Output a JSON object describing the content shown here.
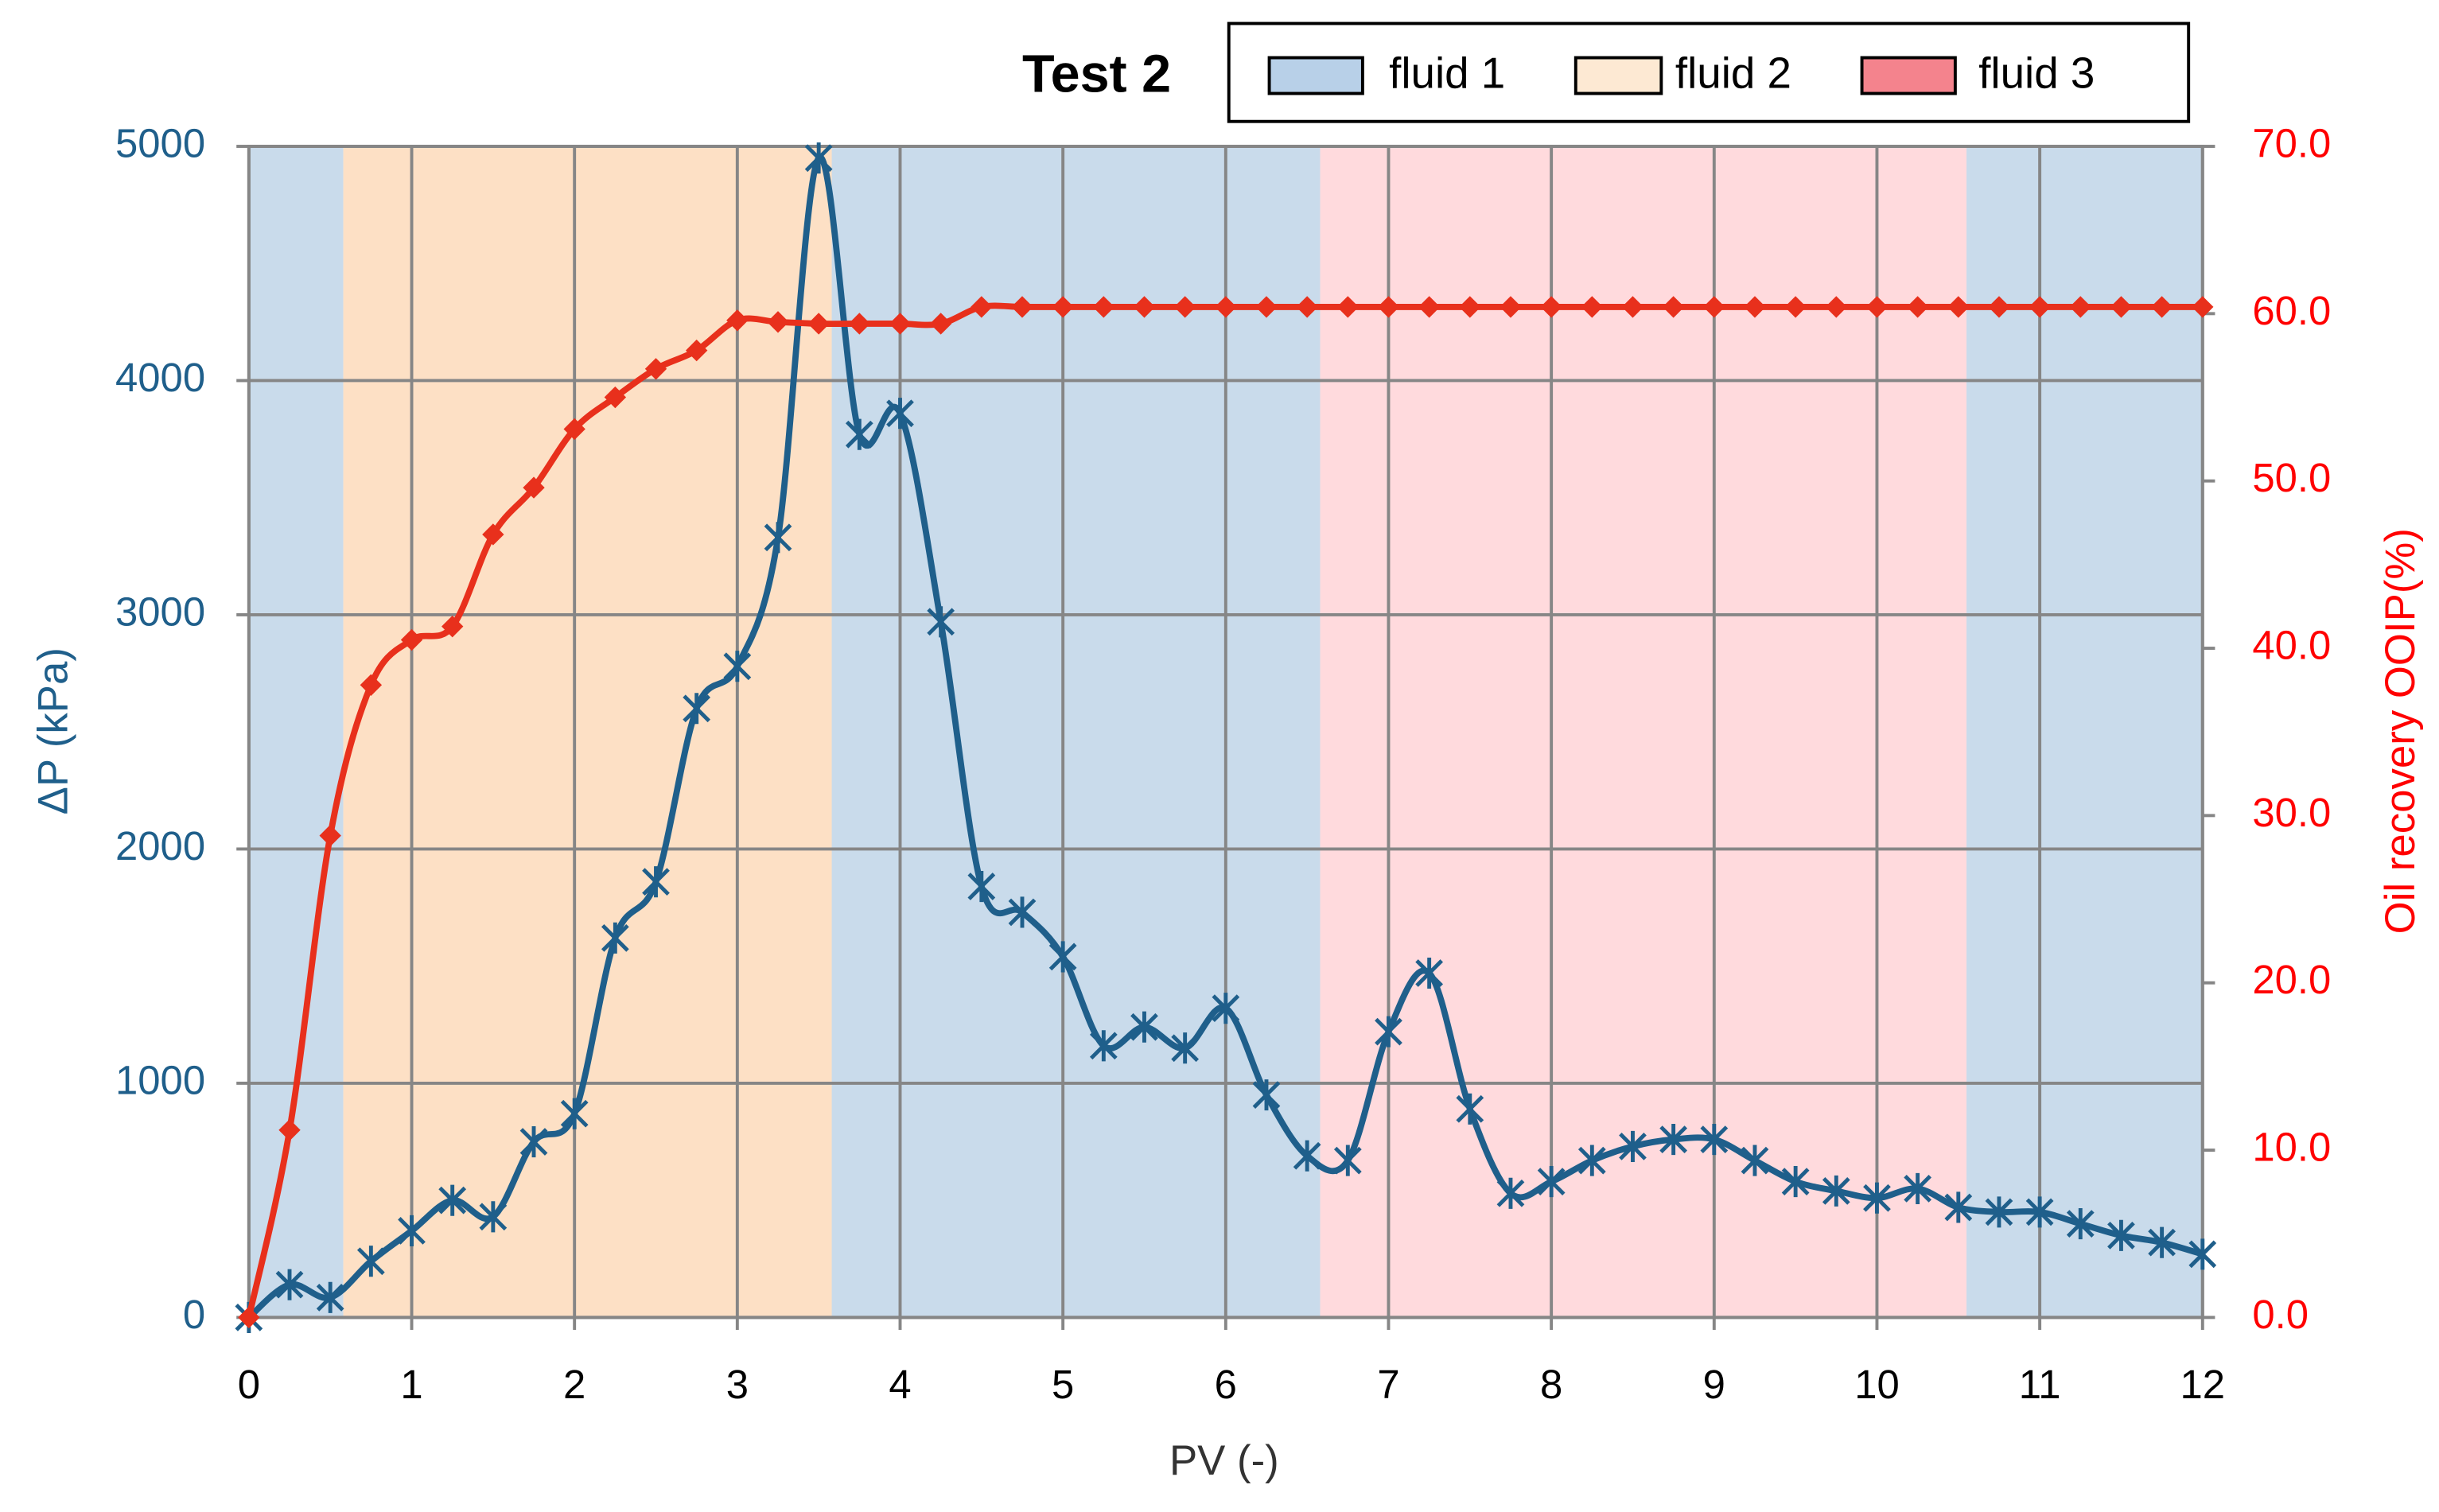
{
  "chart_data": {
    "type": "line",
    "title": "Test 2",
    "x_label": "PV (-)",
    "y_label": "ΔP (kPa)",
    "y2_label": "Oil recovery OOIP(%)",
    "x": [
      0,
      0.25,
      0.5,
      0.75,
      1,
      1.25,
      1.5,
      1.75,
      2,
      2.25,
      2.5,
      2.75,
      3,
      3.25,
      3.5,
      3.75,
      4,
      4.25,
      4.5,
      4.75,
      5,
      5.25,
      5.5,
      5.75,
      6,
      6.25,
      6.5,
      6.75,
      7,
      7.25,
      7.5,
      7.75,
      8,
      8.25,
      8.5,
      8.75,
      9,
      9.25,
      9.5,
      9.75,
      10,
      10.25,
      10.5,
      10.75,
      11,
      11.25,
      11.5,
      11.75,
      12
    ],
    "series": [
      {
        "color": "#1f5f8b",
        "marker": "star",
        "values": [
          0,
          140,
          85,
          240,
          370,
          500,
          430,
          750,
          870,
          1620,
          1860,
          2600,
          2780,
          3330,
          4950,
          3770,
          3860,
          2970,
          1840,
          1730,
          1540,
          1160,
          1240,
          1150,
          1320,
          950,
          690,
          670,
          1220,
          1470,
          890,
          530,
          580,
          670,
          730,
          760,
          760,
          670,
          580,
          540,
          510,
          550,
          470,
          450,
          450,
          400,
          350,
          320,
          270
        ]
      },
      {
        "color": "#e8301c",
        "marker": "diamond",
        "axis": "y2",
        "values": [
          0,
          11.2,
          28.8,
          37.8,
          40.5,
          41.3,
          46.8,
          49.6,
          53.1,
          55,
          56.7,
          57.8,
          59.6,
          59.5,
          59.4,
          59.4,
          59.4,
          59.4,
          60.4,
          60.4,
          60.4,
          60.4,
          60.4,
          60.4,
          60.4,
          60.4,
          60.4,
          60.4,
          60.4,
          60.4,
          60.4,
          60.4,
          60.4,
          60.4,
          60.4,
          60.4,
          60.4,
          60.4,
          60.4,
          60.4,
          60.4,
          60.4,
          60.4,
          60.4,
          60.4,
          60.4,
          60.4,
          60.4,
          60.4
        ]
      }
    ],
    "bands": [
      {
        "name": "fluid 1",
        "color": "#c9dbeb",
        "legend_color": "#b8d0e8",
        "spans": [
          [
            0,
            0.58
          ],
          [
            3.58,
            6.58
          ],
          [
            10.55,
            12
          ]
        ]
      },
      {
        "name": "fluid 2",
        "color": "#fde0c5",
        "legend_color": "#fde9d3",
        "spans": [
          [
            0.58,
            3.58
          ]
        ]
      },
      {
        "name": "fluid 3",
        "color": "#ffdadd",
        "legend_color": "#f4838d",
        "spans": [
          [
            6.58,
            10.55
          ]
        ]
      }
    ],
    "xlim": [
      0,
      12
    ],
    "xticks": [
      0,
      1,
      2,
      3,
      4,
      5,
      6,
      7,
      8,
      9,
      10,
      11,
      12
    ],
    "ylim": [
      0,
      5000
    ],
    "yticks": [
      0,
      1000,
      2000,
      3000,
      4000,
      5000
    ],
    "y2lim": [
      0,
      70
    ],
    "y2ticks": [
      {
        "value": 0,
        "label": "0.0"
      },
      {
        "value": 10,
        "label": "10.0"
      },
      {
        "value": 20,
        "label": "20.0"
      },
      {
        "value": 30,
        "label": "30.0"
      },
      {
        "value": 40,
        "label": "40.0"
      },
      {
        "value": 50,
        "label": "50.0"
      },
      {
        "value": 60,
        "label": "60.0"
      },
      {
        "value": 70,
        "label": "70.0"
      }
    ],
    "grid": true
  }
}
